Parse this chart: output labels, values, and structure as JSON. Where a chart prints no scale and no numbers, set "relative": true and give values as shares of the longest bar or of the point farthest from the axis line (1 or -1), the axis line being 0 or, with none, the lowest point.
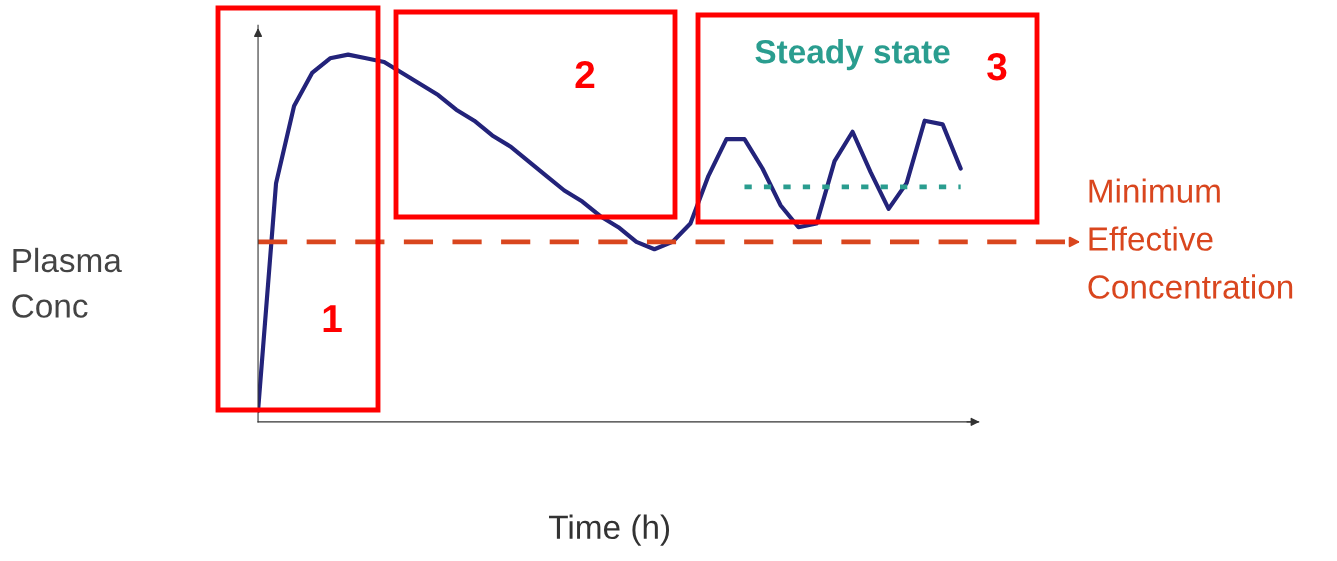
{
  "chart_data": {
    "type": "line",
    "relative": true,
    "xlabel": "Time (h)",
    "ylabel": "Plasma\nConc",
    "marker": "none",
    "categories": [
      null,
      null,
      null,
      null,
      null,
      null,
      null,
      null,
      null,
      null,
      null,
      null,
      null,
      null,
      null,
      null,
      null,
      null,
      null,
      null,
      null,
      null,
      null,
      null,
      null,
      null,
      null,
      null,
      null,
      null,
      null,
      null,
      null,
      null,
      null,
      null,
      null,
      null,
      null,
      null,
      null
    ],
    "series": [
      {
        "color": "#23237a",
        "line_style": "solid",
        "values": [
          0.03,
          0.65,
          0.86,
          0.95,
          0.99,
          1.0,
          0.99,
          0.98,
          0.95,
          0.92,
          0.89,
          0.85,
          0.82,
          0.78,
          0.75,
          0.71,
          0.67,
          0.63,
          0.6,
          0.56,
          0.53,
          0.49,
          0.47,
          0.49,
          0.54,
          0.67,
          0.77,
          0.77,
          0.69,
          0.59,
          0.53,
          0.54,
          0.71,
          0.79,
          0.68,
          0.58,
          0.65,
          0.82,
          0.81,
          0.69,
          null
        ]
      },
      {
        "name": "Steady state",
        "type": "line",
        "line_style": "dotted",
        "color": "#2a9d8f",
        "values": [
          null,
          null,
          null,
          null,
          null,
          null,
          null,
          null,
          null,
          null,
          null,
          null,
          null,
          null,
          null,
          null,
          null,
          null,
          null,
          null,
          null,
          null,
          null,
          null,
          null,
          null,
          null,
          0.64,
          0.64,
          0.64,
          0.64,
          0.64,
          0.64,
          0.64,
          0.64,
          0.64,
          0.64,
          0.64,
          0.64,
          0.64,
          null
        ]
      }
    ],
    "ref_lines": [
      {
        "axis": "y",
        "value": 0.49,
        "label": "Minimum\nEffective\nConcentration",
        "color": "#d9461e",
        "line_style": "dashed"
      }
    ],
    "annotations": [
      "1",
      "2",
      "3"
    ]
  }
}
